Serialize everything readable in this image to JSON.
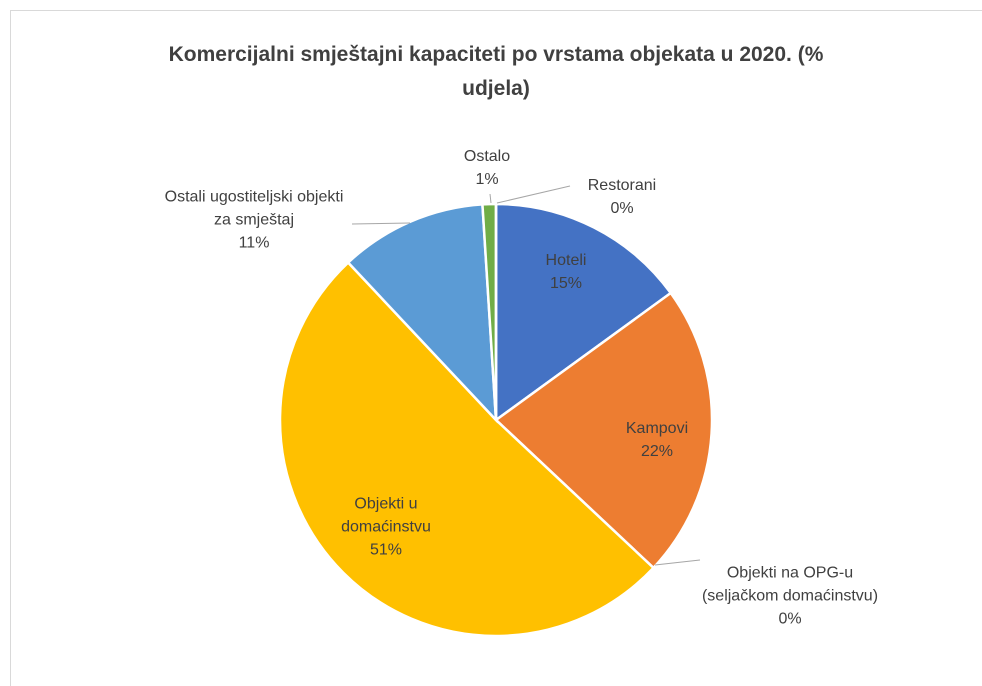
{
  "chart_data": {
    "type": "pie",
    "title": "Komercijalni smještajni kapaciteti po vrstama objekata u 2020. (% udjela)",
    "categories": [
      "Hoteli",
      "Kampovi",
      "Objekti na OPG-u (seljačkom domaćinstvu)",
      "Objekti u domaćinstvu",
      "Ostali ugostiteljski objekti za smještaj",
      "Ostalo",
      "Restorani"
    ],
    "values": [
      15,
      22,
      0,
      51,
      11,
      1,
      0
    ],
    "value_labels": [
      "15%",
      "22%",
      "0%",
      "51%",
      "11%",
      "1%",
      "0%"
    ],
    "colors": [
      "#4472c4",
      "#ed7d31",
      "#a5a5a5",
      "#ffc000",
      "#5b9bd5",
      "#70ad47",
      "#264478"
    ]
  }
}
